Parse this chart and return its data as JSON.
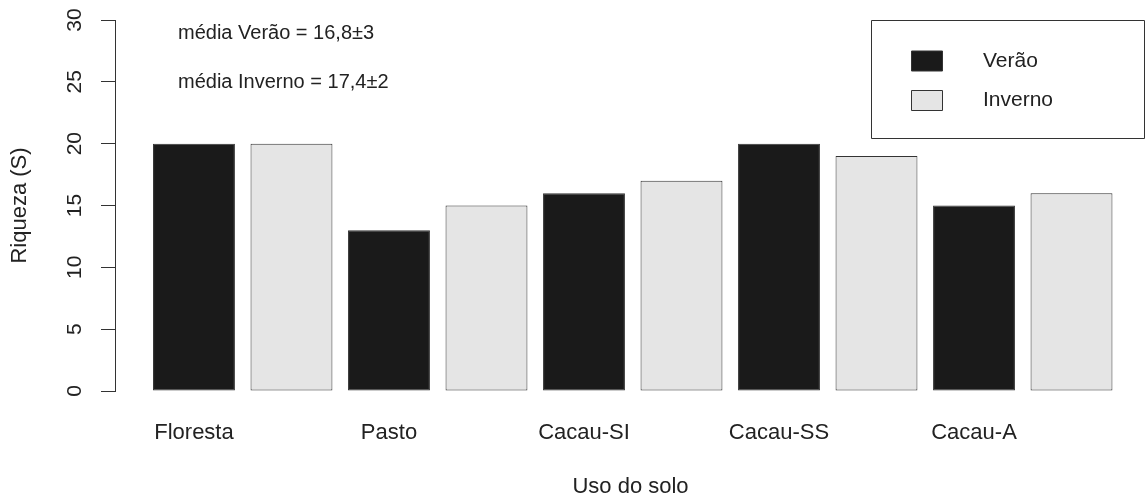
{
  "chart_data": {
    "type": "bar",
    "xlabel": "Uso do solo",
    "ylabel": "Riqueza (S)",
    "categories": [
      "Floresta",
      "Pasto",
      "Cacau-SI",
      "Cacau-SS",
      "Cacau-A"
    ],
    "series": [
      {
        "name": "Verão",
        "color": "#1a1a1a",
        "values": [
          20,
          13,
          16,
          20,
          15
        ]
      },
      {
        "name": "Inverno",
        "color": "#e5e5e5",
        "values": [
          20,
          15,
          17,
          19,
          16
        ]
      }
    ],
    "ylim": [
      0,
      30
    ],
    "yticks": [
      0,
      5,
      10,
      15,
      20,
      25,
      30
    ],
    "legend": "top right",
    "annotations": [
      "média Verão = 16,8±3",
      "média Inverno = 17,4±2"
    ]
  }
}
